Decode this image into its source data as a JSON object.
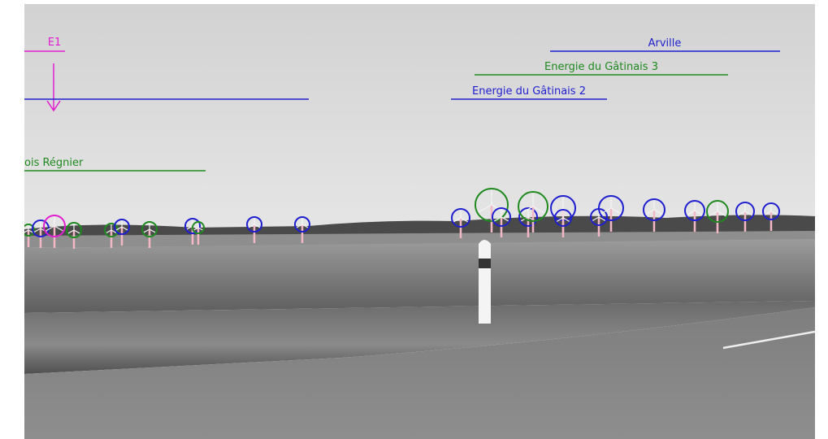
{
  "labels": [
    {
      "text": "E1"
    },
    {
      "text": "ois Régnier"
    },
    {
      "text": "Arville"
    },
    {
      "text": "Energie du Gâtinais 3"
    },
    {
      "text": "Energie du Gâtinais 2"
    }
  ]
}
